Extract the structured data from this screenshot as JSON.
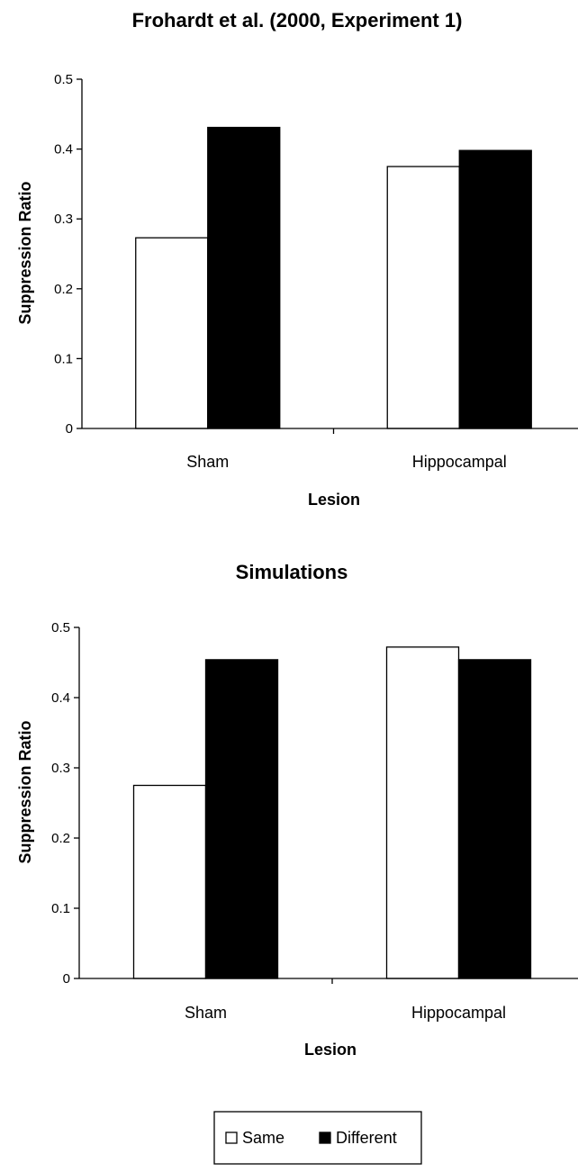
{
  "chart_data": [
    {
      "type": "bar",
      "title": "Frohardt et al. (2000, Experiment 1)",
      "xlabel": "Lesion",
      "ylabel": "Suppression Ratio",
      "categories": [
        "Sham",
        "Hippocampal"
      ],
      "series": [
        {
          "name": "Same",
          "values": [
            0.273,
            0.375
          ]
        },
        {
          "name": "Different",
          "values": [
            0.431,
            0.398
          ]
        }
      ],
      "ylim": [
        0,
        0.5
      ],
      "yticks": [
        0,
        0.1,
        0.2,
        0.3,
        0.4,
        0.5
      ],
      "ytick_labels": [
        "0",
        "0.1",
        "0.2",
        "0.3",
        "0.4",
        "0.5"
      ],
      "grid": false
    },
    {
      "type": "bar",
      "title": "Simulations",
      "xlabel": "Lesion",
      "ylabel": "Suppression Ratio",
      "categories": [
        "Sham",
        "Hippocampal"
      ],
      "series": [
        {
          "name": "Same",
          "values": [
            0.275,
            0.472
          ]
        },
        {
          "name": "Different",
          "values": [
            0.454,
            0.454
          ]
        }
      ],
      "ylim": [
        0,
        0.5
      ],
      "yticks": [
        0,
        0.1,
        0.2,
        0.3,
        0.4,
        0.5
      ],
      "ytick_labels": [
        "0",
        "0.1",
        "0.2",
        "0.3",
        "0.4",
        "0.5"
      ],
      "grid": false
    }
  ],
  "legend": {
    "position": "bottom-center",
    "items": [
      {
        "label": "Same",
        "color": "#ffffff"
      },
      {
        "label": "Different",
        "color": "#000000"
      }
    ]
  }
}
